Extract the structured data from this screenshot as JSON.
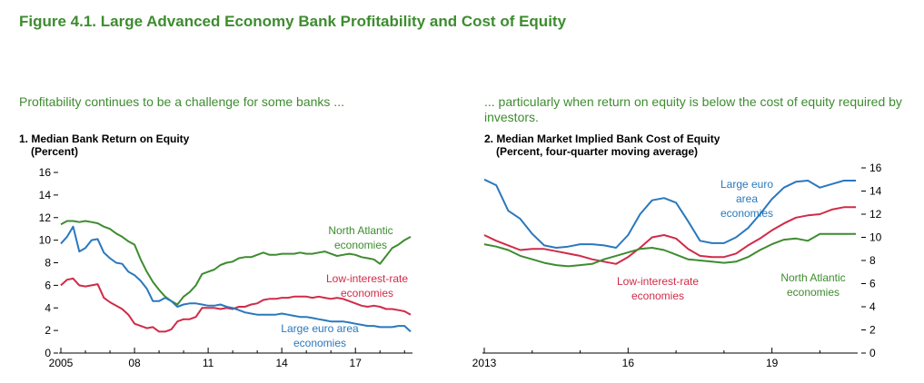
{
  "figure_title": "Figure 4.1. Large Advanced Economy Bank Profitability and Cost of Equity",
  "panels": [
    {
      "subtitle": "Profitability continues to be a challenge for some banks ...",
      "title": "1. Median Bank Return on Equity",
      "unit": "(Percent)"
    },
    {
      "subtitle": "... particularly when return on equity is below the cost of equity required by investors.",
      "title": "2. Median Market Implied Bank Cost of Equity",
      "unit": "(Percent, four-quarter moving average)"
    }
  ],
  "colors": {
    "green": "#3d8c2f",
    "blue": "#2a78bd",
    "red": "#cf2b48",
    "title_green": "#3d8c2f"
  },
  "chart_data": [
    {
      "type": "line",
      "title": "1. Median Bank Return on Equity",
      "ylabel": "(Percent)",
      "xlim": [
        2005,
        2019.25
      ],
      "ylim": [
        0,
        16
      ],
      "x_tick_labels": [
        "2005",
        "08",
        "11",
        "14",
        "17"
      ],
      "x_tick_values": [
        2005,
        2008,
        2011,
        2014,
        2017
      ],
      "y_ticks": [
        0,
        2,
        4,
        6,
        8,
        10,
        12,
        14,
        16
      ],
      "grid": false,
      "series": [
        {
          "name": "North Atlantic economies",
          "color_key": "green",
          "x": [
            2005,
            2005.25,
            2005.5,
            2005.75,
            2006,
            2006.25,
            2006.5,
            2006.75,
            2007,
            2007.25,
            2007.5,
            2007.75,
            2008,
            2008.25,
            2008.5,
            2008.75,
            2009,
            2009.25,
            2009.5,
            2009.75,
            2010,
            2010.25,
            2010.5,
            2010.75,
            2011,
            2011.25,
            2011.5,
            2011.75,
            2012,
            2012.25,
            2012.5,
            2012.75,
            2013,
            2013.25,
            2013.5,
            2013.75,
            2014,
            2014.25,
            2014.5,
            2014.75,
            2015,
            2015.25,
            2015.5,
            2015.75,
            2016,
            2016.25,
            2016.5,
            2016.75,
            2017,
            2017.25,
            2017.5,
            2017.75,
            2018,
            2018.25,
            2018.5,
            2018.75,
            2019,
            2019.25
          ],
          "y": [
            11.4,
            11.7,
            11.7,
            11.6,
            11.7,
            11.6,
            11.5,
            11.2,
            11.0,
            10.6,
            10.3,
            9.9,
            9.6,
            8.3,
            7.2,
            6.3,
            5.6,
            5.0,
            4.6,
            4.3,
            5.0,
            5.4,
            6.0,
            7.0,
            7.2,
            7.4,
            7.8,
            8.0,
            8.1,
            8.4,
            8.5,
            8.5,
            8.7,
            8.9,
            8.7,
            8.7,
            8.8,
            8.8,
            8.8,
            8.9,
            8.8,
            8.8,
            8.9,
            9.0,
            8.8,
            8.6,
            8.7,
            8.8,
            8.7,
            8.5,
            8.4,
            8.3,
            7.9,
            8.6,
            9.3,
            9.6,
            10.0,
            10.3
          ]
        },
        {
          "name": "Low-interest-rate economies",
          "color_key": "red",
          "x": [
            2005,
            2005.25,
            2005.5,
            2005.75,
            2006,
            2006.25,
            2006.5,
            2006.75,
            2007,
            2007.25,
            2007.5,
            2007.75,
            2008,
            2008.25,
            2008.5,
            2008.75,
            2009,
            2009.25,
            2009.5,
            2009.75,
            2010,
            2010.25,
            2010.5,
            2010.75,
            2011,
            2011.25,
            2011.5,
            2011.75,
            2012,
            2012.25,
            2012.5,
            2012.75,
            2013,
            2013.25,
            2013.5,
            2013.75,
            2014,
            2014.25,
            2014.5,
            2014.75,
            2015,
            2015.25,
            2015.5,
            2015.75,
            2016,
            2016.25,
            2016.5,
            2016.75,
            2017,
            2017.25,
            2017.5,
            2017.75,
            2018,
            2018.25,
            2018.5,
            2018.75,
            2019,
            2019.25
          ],
          "y": [
            6.0,
            6.5,
            6.6,
            6.0,
            5.9,
            6.0,
            6.1,
            4.9,
            4.5,
            4.2,
            3.9,
            3.4,
            2.6,
            2.4,
            2.2,
            2.3,
            1.9,
            1.9,
            2.1,
            2.8,
            3.0,
            3.0,
            3.2,
            4.0,
            4.0,
            4.0,
            3.9,
            4.0,
            3.9,
            4.1,
            4.1,
            4.3,
            4.4,
            4.7,
            4.8,
            4.8,
            4.9,
            4.9,
            5.0,
            5.0,
            5.0,
            4.9,
            5.0,
            4.9,
            4.8,
            4.9,
            4.8,
            4.6,
            4.4,
            4.2,
            4.1,
            4.2,
            4.1,
            3.9,
            3.9,
            3.8,
            3.7,
            3.4
          ]
        },
        {
          "name": "Large euro area economies",
          "color_key": "blue",
          "x": [
            2005,
            2005.25,
            2005.5,
            2005.75,
            2006,
            2006.25,
            2006.5,
            2006.75,
            2007,
            2007.25,
            2007.5,
            2007.75,
            2008,
            2008.25,
            2008.5,
            2008.75,
            2009,
            2009.25,
            2009.5,
            2009.75,
            2010,
            2010.25,
            2010.5,
            2010.75,
            2011,
            2011.25,
            2011.5,
            2011.75,
            2012,
            2012.25,
            2012.5,
            2012.75,
            2013,
            2013.25,
            2013.5,
            2013.75,
            2014,
            2014.25,
            2014.5,
            2014.75,
            2015,
            2015.25,
            2015.5,
            2015.75,
            2016,
            2016.25,
            2016.5,
            2016.75,
            2017,
            2017.25,
            2017.5,
            2017.75,
            2018,
            2018.25,
            2018.5,
            2018.75,
            2019,
            2019.25
          ],
          "y": [
            9.7,
            10.3,
            11.2,
            9.0,
            9.3,
            10.0,
            10.1,
            8.9,
            8.4,
            8.0,
            7.9,
            7.2,
            6.9,
            6.4,
            5.7,
            4.6,
            4.6,
            4.9,
            4.6,
            4.1,
            4.3,
            4.4,
            4.4,
            4.3,
            4.2,
            4.2,
            4.3,
            4.1,
            4.0,
            3.8,
            3.6,
            3.5,
            3.4,
            3.4,
            3.4,
            3.4,
            3.5,
            3.4,
            3.3,
            3.2,
            3.2,
            3.1,
            3.0,
            2.9,
            2.8,
            2.8,
            2.8,
            2.7,
            2.6,
            2.5,
            2.4,
            2.4,
            2.3,
            2.3,
            2.3,
            2.4,
            2.4,
            1.9
          ]
        }
      ],
      "annotations": [
        {
          "series": "North Atlantic economies",
          "lines": [
            "North Atlantic",
            "economies"
          ]
        },
        {
          "series": "Low-interest-rate economies",
          "lines": [
            "Low-interest-rate",
            "economies"
          ]
        },
        {
          "series": "Large euro area economies",
          "lines": [
            "Large euro area",
            "economies"
          ]
        }
      ]
    },
    {
      "type": "line",
      "title": "2. Median Market Implied Bank Cost of Equity",
      "ylabel": "(Percent, four-quarter moving average)",
      "xlim": [
        2013,
        2020.75
      ],
      "ylim": [
        0,
        16
      ],
      "x_tick_labels": [
        "2013",
        "16",
        "19"
      ],
      "x_tick_values": [
        2013,
        2016,
        2019
      ],
      "y_ticks": [
        0,
        2,
        4,
        6,
        8,
        10,
        12,
        14,
        16
      ],
      "y_axis_side": "right",
      "grid": false,
      "series": [
        {
          "name": "Large euro area economies",
          "color_key": "blue",
          "x": [
            2013,
            2013.25,
            2013.5,
            2013.75,
            2014,
            2014.25,
            2014.5,
            2014.75,
            2015,
            2015.25,
            2015.5,
            2015.75,
            2016,
            2016.25,
            2016.5,
            2016.75,
            2017,
            2017.25,
            2017.5,
            2017.75,
            2018,
            2018.25,
            2018.5,
            2018.75,
            2019,
            2019.25,
            2019.5,
            2019.75,
            2020,
            2020.25,
            2020.5,
            2020.75
          ],
          "y": [
            15.0,
            14.5,
            12.3,
            11.6,
            10.3,
            9.3,
            9.1,
            9.2,
            9.4,
            9.4,
            9.3,
            9.1,
            10.2,
            12.0,
            13.2,
            13.4,
            13.0,
            11.4,
            9.7,
            9.5,
            9.5,
            10.0,
            10.8,
            12.0,
            13.3,
            14.3,
            14.8,
            14.9,
            14.3,
            14.6,
            14.9,
            14.9
          ]
        },
        {
          "name": "Low-interest-rate economies",
          "color_key": "red",
          "x": [
            2013,
            2013.25,
            2013.5,
            2013.75,
            2014,
            2014.25,
            2014.5,
            2014.75,
            2015,
            2015.25,
            2015.5,
            2015.75,
            2016,
            2016.25,
            2016.5,
            2016.75,
            2017,
            2017.25,
            2017.5,
            2017.75,
            2018,
            2018.25,
            2018.5,
            2018.75,
            2019,
            2019.25,
            2019.5,
            2019.75,
            2020,
            2020.25,
            2020.5,
            2020.75
          ],
          "y": [
            10.2,
            9.7,
            9.3,
            8.9,
            9.0,
            9.0,
            8.8,
            8.6,
            8.4,
            8.1,
            7.9,
            7.7,
            8.3,
            9.1,
            10.0,
            10.2,
            9.9,
            9.0,
            8.4,
            8.3,
            8.3,
            8.6,
            9.3,
            9.9,
            10.6,
            11.2,
            11.7,
            11.9,
            12.0,
            12.4,
            12.6,
            12.6
          ]
        },
        {
          "name": "North Atlantic economies",
          "color_key": "green",
          "x": [
            2013,
            2013.25,
            2013.5,
            2013.75,
            2014,
            2014.25,
            2014.5,
            2014.75,
            2015,
            2015.25,
            2015.5,
            2015.75,
            2016,
            2016.25,
            2016.5,
            2016.75,
            2017,
            2017.25,
            2017.5,
            2017.75,
            2018,
            2018.25,
            2018.5,
            2018.75,
            2019,
            2019.25,
            2019.5,
            2019.75,
            2020,
            2020.25,
            2020.5,
            2020.75
          ],
          "y": [
            9.4,
            9.2,
            8.9,
            8.4,
            8.1,
            7.8,
            7.6,
            7.5,
            7.6,
            7.7,
            8.1,
            8.4,
            8.7,
            9.0,
            9.1,
            8.9,
            8.5,
            8.1,
            8.0,
            7.9,
            7.8,
            7.9,
            8.3,
            8.9,
            9.4,
            9.8,
            9.9,
            9.7,
            10.3,
            10.3,
            10.3,
            10.3
          ]
        }
      ],
      "annotations": [
        {
          "series": "Large euro area economies",
          "lines": [
            "Large euro",
            "area",
            "economies"
          ]
        },
        {
          "series": "Low-interest-rate economies",
          "lines": [
            "Low-interest-rate",
            "economies"
          ]
        },
        {
          "series": "North Atlantic economies",
          "lines": [
            "North Atlantic",
            "economies"
          ]
        }
      ]
    }
  ]
}
